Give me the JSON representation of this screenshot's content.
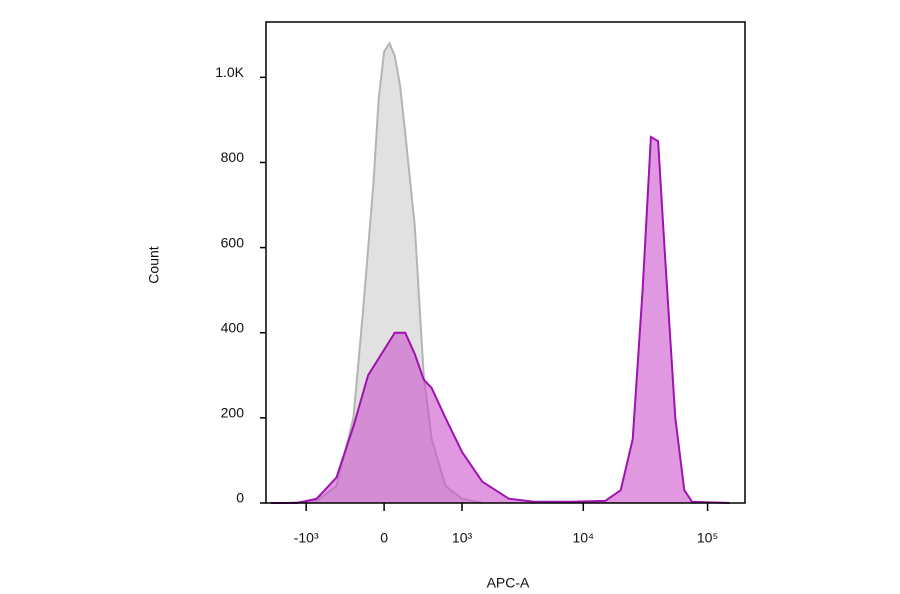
{
  "chart_data": {
    "type": "histogram-overlay",
    "x_label": "APC-A",
    "y_label": "Count",
    "xscale": "biexponential",
    "xlim": [
      -2200,
      200000
    ],
    "xticks": [
      {
        "value": -1000,
        "label": "-10³"
      },
      0,
      {
        "value": 1000,
        "label": "10³"
      },
      {
        "value": 10000,
        "label": "10⁴"
      },
      {
        "value": 100000,
        "label": "10⁵"
      }
    ],
    "ylim": [
      0,
      1130
    ],
    "yticks": [
      0,
      200,
      400,
      600,
      800,
      {
        "value": 1000,
        "label": "1.0K"
      }
    ],
    "series": [
      {
        "color": "#b4b4b4",
        "fill": "#dedede",
        "x": [
          -1500,
          -800,
          -500,
          -300,
          -200,
          -100,
          -50,
          0,
          50,
          100,
          150,
          200,
          300,
          400,
          500,
          700,
          1000,
          1500
        ],
        "values": [
          0,
          5,
          40,
          200,
          450,
          750,
          950,
          1060,
          1080,
          1050,
          980,
          870,
          650,
          300,
          150,
          40,
          10,
          0
        ]
      },
      {
        "color": "#a012b0",
        "fill": "#cc55cc",
        "x": [
          -2000,
          -1200,
          -800,
          -500,
          -300,
          -150,
          0,
          100,
          200,
          300,
          400,
          500,
          700,
          1000,
          1500,
          2500,
          4000,
          8000,
          15000,
          20000,
          25000,
          30000,
          35000,
          40000,
          45000,
          55000,
          65000,
          75000,
          150000
        ],
        "values": [
          0,
          0,
          10,
          60,
          180,
          300,
          360,
          400,
          400,
          350,
          290,
          270,
          200,
          120,
          50,
          10,
          3,
          3,
          5,
          30,
          150,
          500,
          860,
          850,
          600,
          200,
          30,
          3,
          0
        ]
      }
    ]
  }
}
